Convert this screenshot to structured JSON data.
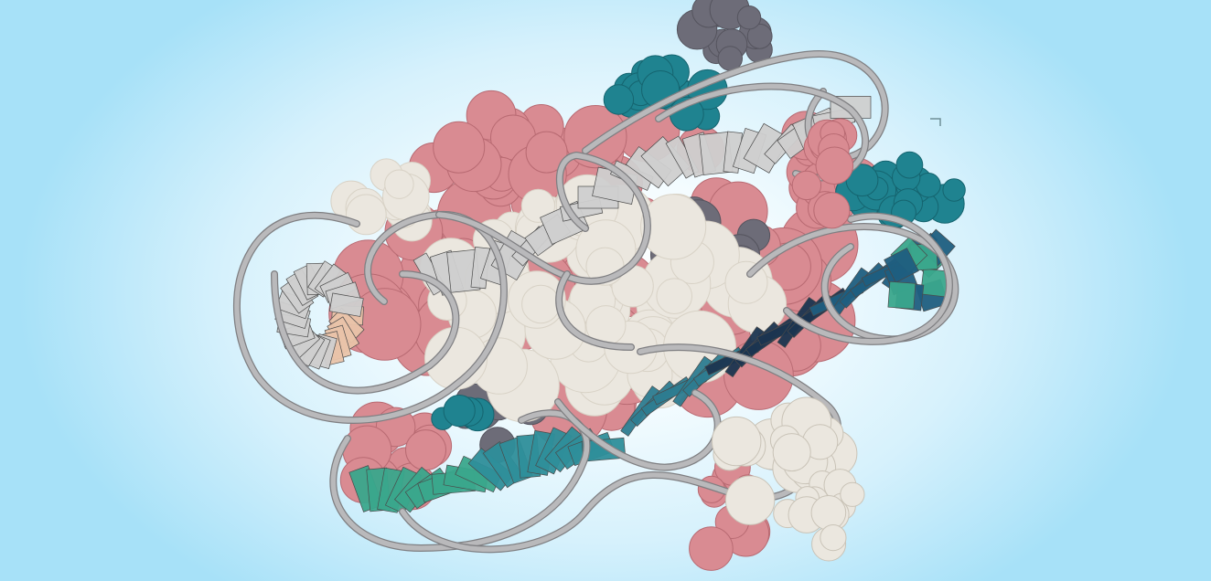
{
  "scene": {
    "subject": "",
    "colors": {
      "background_edge": "#a7e1f8",
      "background_center": "#ffffff",
      "protein_pink": "#d98b92",
      "protein_pink_dark": "#b86a72",
      "protein_cream": "#ebe7df",
      "protein_slate": "#6d6c78",
      "protein_teal": "#1f8390",
      "backbone_tube": "#b9b9bb",
      "base_grey": "#cfcfcf",
      "base_peach": "#e9c3a9",
      "base_green": "#3aa68c",
      "base_blue": "#1f5e7f",
      "base_navy": "#1b3550"
    }
  }
}
